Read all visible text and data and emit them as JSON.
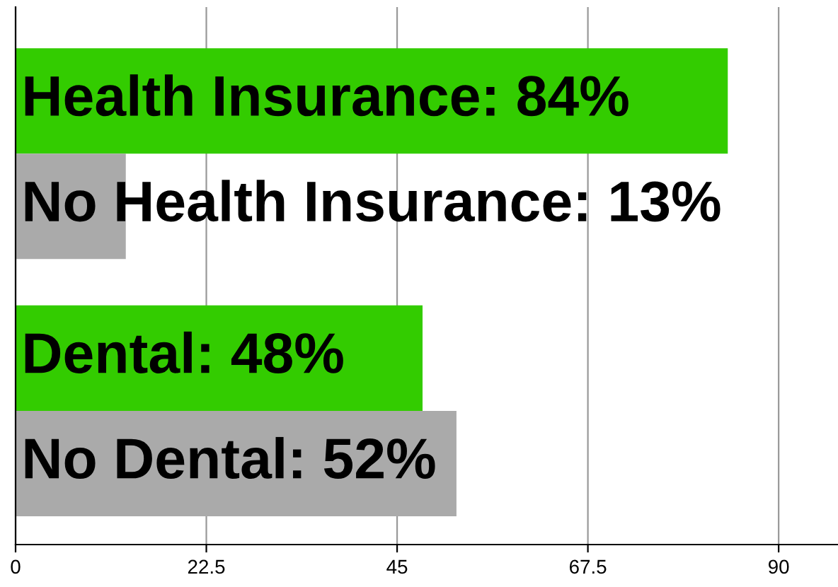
{
  "chart_data": {
    "type": "bar",
    "orientation": "horizontal",
    "categories": [
      null,
      null
    ],
    "series": [
      {
        "color": "#33cc00",
        "values": [
          84,
          48
        ],
        "value_labels": [
          "Health Insurance: 84%",
          "Dental: 48%"
        ]
      },
      {
        "color": "#aaaaaa",
        "values": [
          13,
          52
        ],
        "value_labels": [
          "No Health Insurance: 13%",
          "No Dental: 52%"
        ]
      }
    ],
    "xlim": [
      0,
      97
    ],
    "xticks": [
      0,
      22.5,
      45,
      67.5,
      90
    ],
    "grid": "x",
    "tick_labels": "x"
  }
}
